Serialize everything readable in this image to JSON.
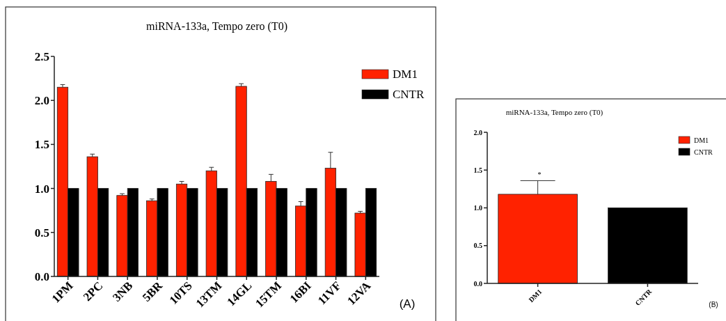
{
  "chart_data": [
    {
      "type": "bar",
      "title": "miRNA-133a, Tempo zero (T0)",
      "categories": [
        "1PM",
        "2PC",
        "3NB",
        "5BR",
        "10TS",
        "13TM",
        "14GL",
        "15TM",
        "16BI",
        "11VF",
        "12VA"
      ],
      "series": [
        {
          "name": "DM1",
          "color": "#ff2200",
          "values": [
            2.15,
            1.36,
            0.92,
            0.86,
            1.05,
            1.2,
            2.16,
            1.08,
            0.8,
            1.23,
            0.72
          ],
          "errors": [
            0.03,
            0.03,
            0.02,
            0.02,
            0.03,
            0.04,
            0.03,
            0.08,
            0.05,
            0.18,
            0.02
          ]
        },
        {
          "name": "CNTR",
          "color": "#000000",
          "values": [
            1.0,
            1.0,
            1.0,
            1.0,
            1.0,
            1.0,
            1.0,
            1.0,
            1.0,
            1.0,
            1.0
          ]
        }
      ],
      "ylim": [
        0,
        2.5
      ],
      "yticks": [
        {
          "value": 0,
          "label": "0.0"
        },
        {
          "value": 0.5,
          "label": "0.5"
        },
        {
          "value": 1,
          "label": "1.0"
        },
        {
          "value": 1.5,
          "label": "1.5"
        },
        {
          "value": 2,
          "label": "2.0"
        },
        {
          "value": 2.5,
          "label": "2.5"
        }
      ],
      "legend": "top right",
      "grid": false,
      "annotations": [
        "(A)"
      ]
    },
    {
      "type": "bar",
      "title": "miRNA-133a, Tempo zero (T0)",
      "categories": [
        "DM1",
        "CNTR"
      ],
      "stacked": true,
      "series": [
        {
          "name": "DM1",
          "color": "#ff2200",
          "values": [
            1.18,
            null
          ],
          "errors": [
            0.18,
            null
          ]
        },
        {
          "name": "CNTR",
          "color": "#000000",
          "values": [
            null,
            1.0
          ]
        }
      ],
      "ylim": [
        0,
        2.0
      ],
      "yticks": [
        {
          "value": 0,
          "label": "0.0"
        },
        {
          "value": 0.5,
          "label": "0.5"
        },
        {
          "value": 1,
          "label": "1.0"
        },
        {
          "value": 1.5,
          "label": "1.5"
        },
        {
          "value": 2,
          "label": "2.0"
        }
      ],
      "legend": "top right",
      "grid": false,
      "annotations": [
        "*",
        "(B)"
      ]
    }
  ]
}
